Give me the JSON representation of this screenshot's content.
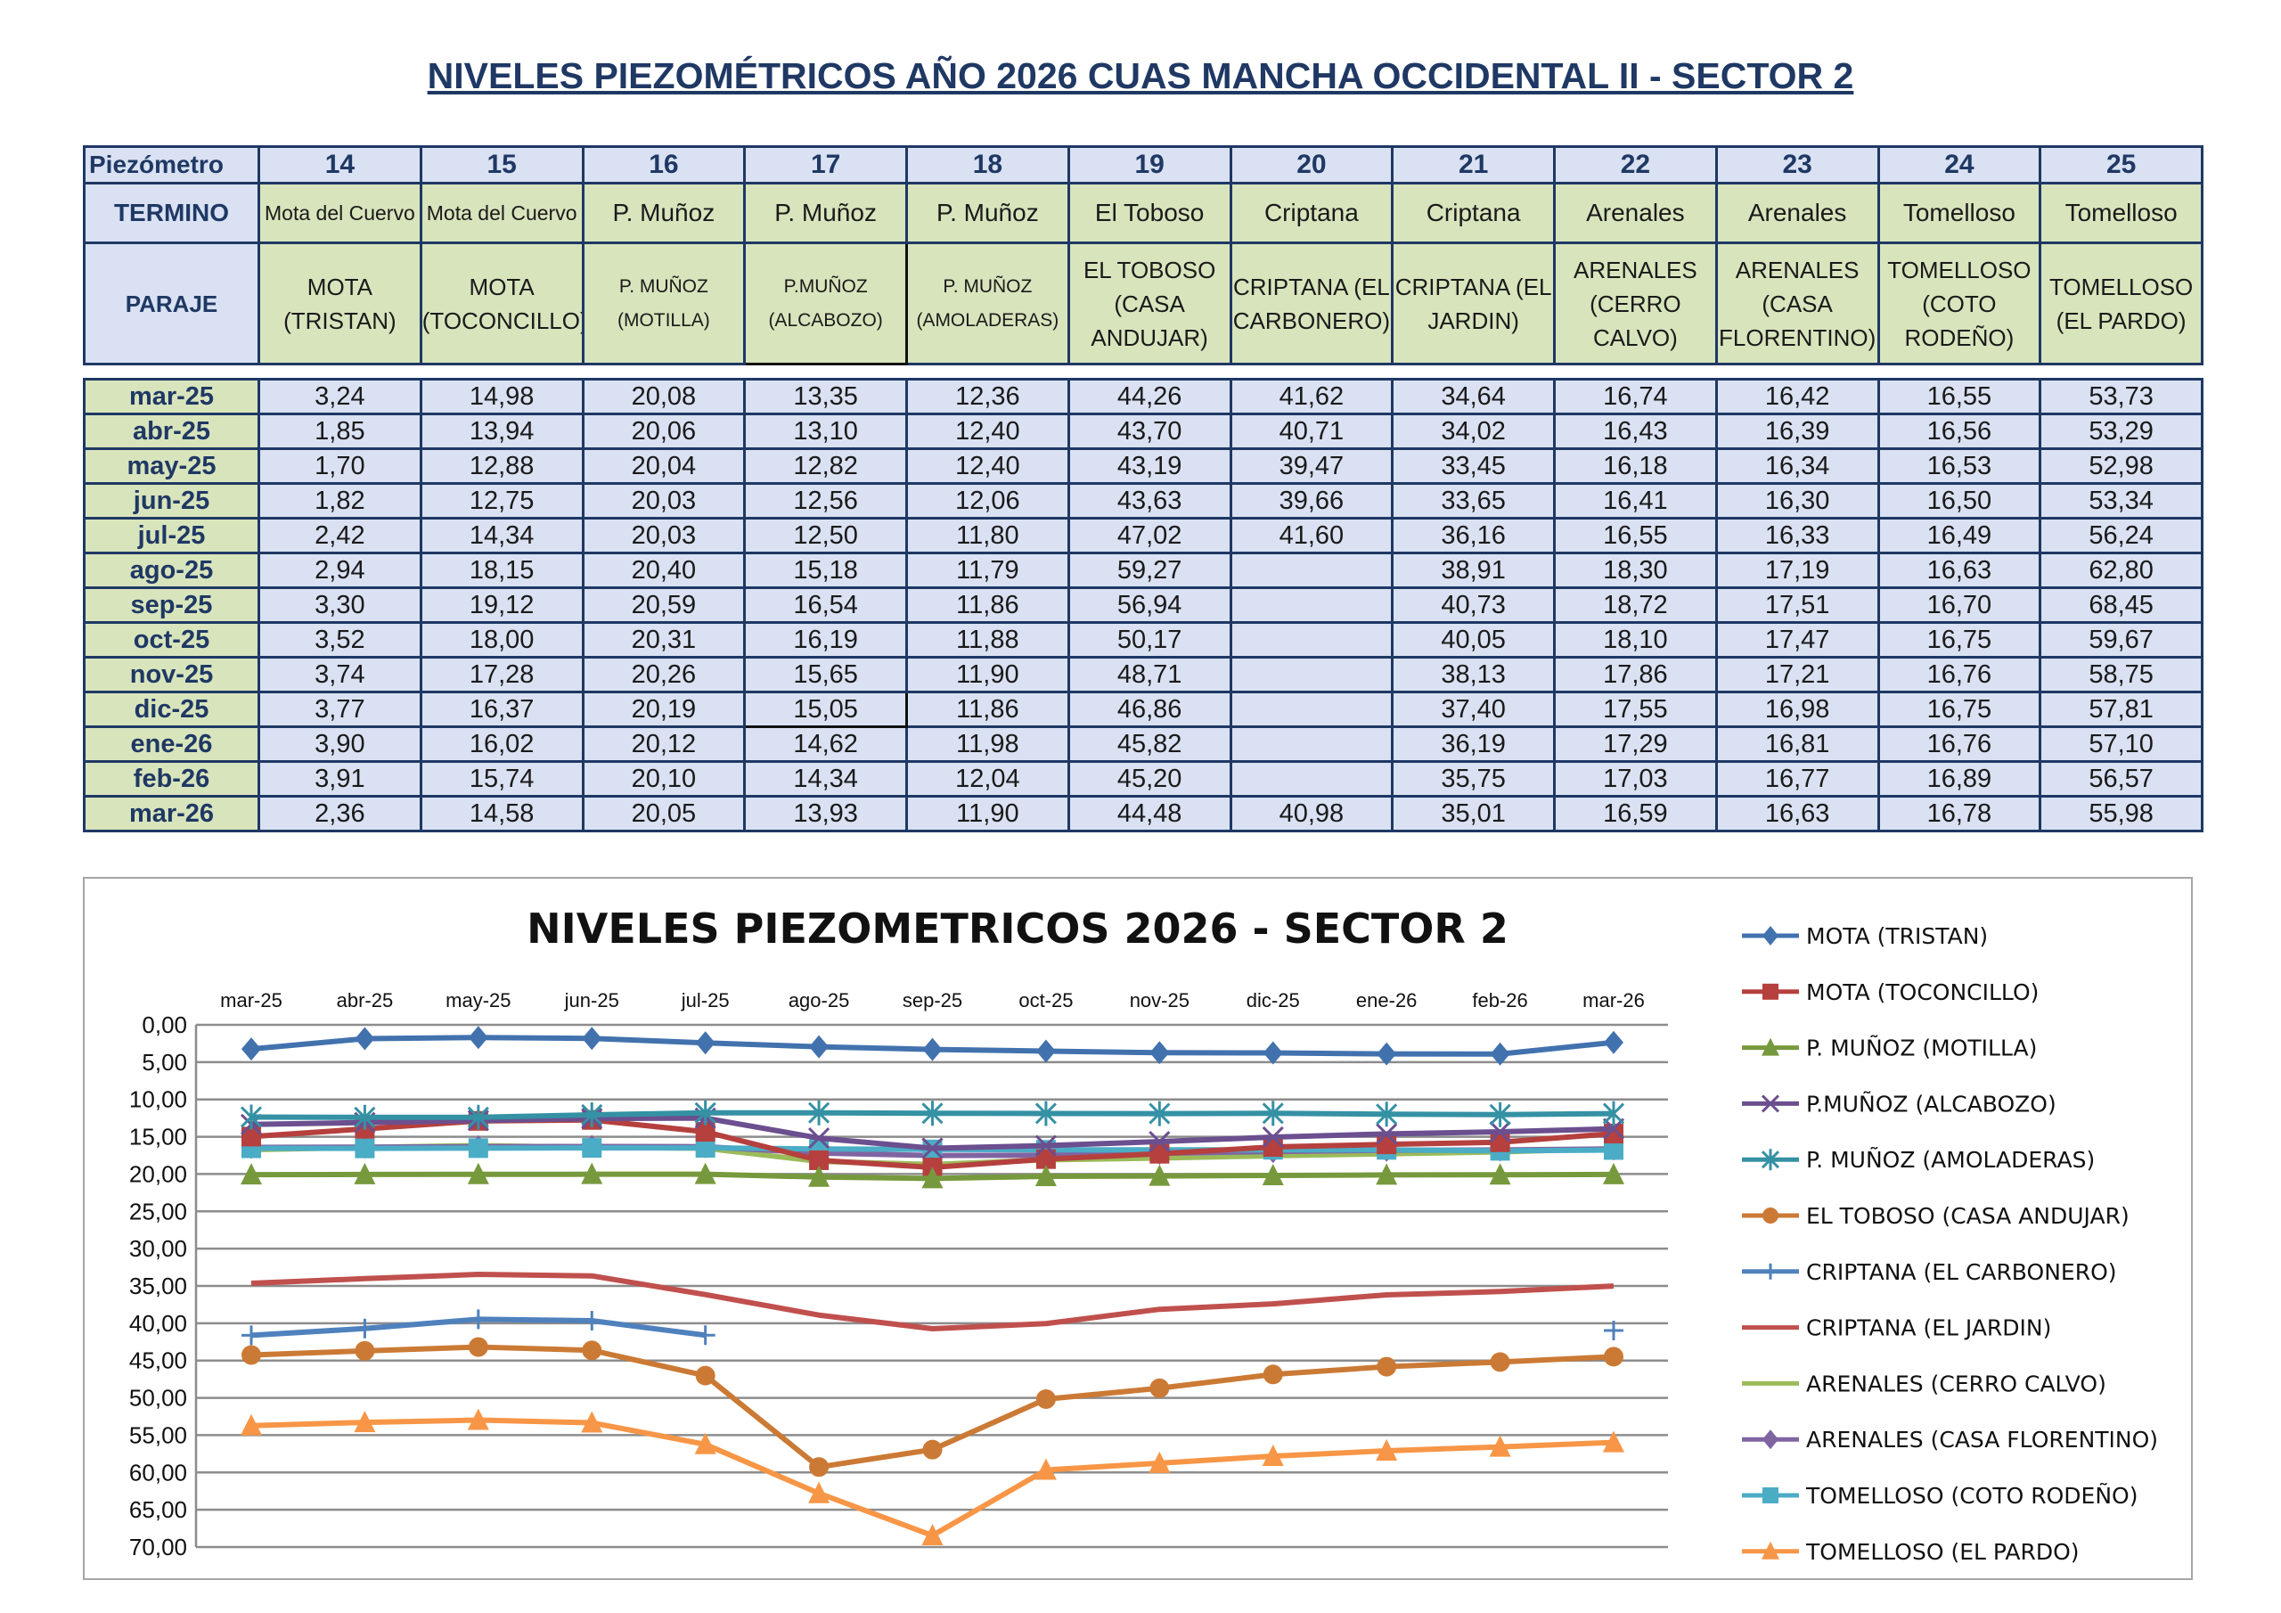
{
  "page_title": "NIVELES PIEZOMÉTRICOS AÑO 2026 CUAS MANCHA OCCIDENTAL II - SECTOR 2",
  "table": {
    "row_labels": {
      "piezometro": "Piezómetro",
      "termino": "TERMINO",
      "paraje": "PARAJE"
    },
    "columns": [
      {
        "id": "14",
        "termino": "Mota del Cuervo",
        "paraje": "MOTA (TRISTAN)"
      },
      {
        "id": "15",
        "termino": "Mota del Cuervo",
        "paraje": "MOTA (TOCONCILLO)"
      },
      {
        "id": "16",
        "termino": "P. Muñoz",
        "paraje": "P. MUÑOZ (MOTILLA)"
      },
      {
        "id": "17",
        "termino": "P. Muñoz",
        "paraje": "P.MUÑOZ (ALCABOZO)"
      },
      {
        "id": "18",
        "termino": "P. Muñoz",
        "paraje": "P. MUÑOZ (AMOLADERAS)"
      },
      {
        "id": "19",
        "termino": "El Toboso",
        "paraje": "EL TOBOSO (CASA ANDUJAR)"
      },
      {
        "id": "20",
        "termino": "Criptana",
        "paraje": "CRIPTANA (EL CARBONERO)"
      },
      {
        "id": "21",
        "termino": "Criptana",
        "paraje": "CRIPTANA (EL JARDIN)"
      },
      {
        "id": "22",
        "termino": "Arenales",
        "paraje": "ARENALES (CERRO CALVO)"
      },
      {
        "id": "23",
        "termino": "Arenales",
        "paraje": "ARENALES (CASA FLORENTINO)"
      },
      {
        "id": "24",
        "termino": "Tomelloso",
        "paraje": "TOMELLOSO (COTO RODEÑO)"
      },
      {
        "id": "25",
        "termino": "Tomelloso",
        "paraje": "TOMELLOSO (EL PARDO)"
      }
    ],
    "rows": [
      {
        "month": "mar-25",
        "values": [
          "3,24",
          "14,98",
          "20,08",
          "13,35",
          "12,36",
          "44,26",
          "41,62",
          "34,64",
          "16,74",
          "16,42",
          "16,55",
          "53,73"
        ]
      },
      {
        "month": "abr-25",
        "values": [
          "1,85",
          "13,94",
          "20,06",
          "13,10",
          "12,40",
          "43,70",
          "40,71",
          "34,02",
          "16,43",
          "16,39",
          "16,56",
          "53,29"
        ]
      },
      {
        "month": "may-25",
        "values": [
          "1,70",
          "12,88",
          "20,04",
          "12,82",
          "12,40",
          "43,19",
          "39,47",
          "33,45",
          "16,18",
          "16,34",
          "16,53",
          "52,98"
        ]
      },
      {
        "month": "jun-25",
        "values": [
          "1,82",
          "12,75",
          "20,03",
          "12,56",
          "12,06",
          "43,63",
          "39,66",
          "33,65",
          "16,41",
          "16,30",
          "16,50",
          "53,34"
        ]
      },
      {
        "month": "jul-25",
        "values": [
          "2,42",
          "14,34",
          "20,03",
          "12,50",
          "11,80",
          "47,02",
          "41,60",
          "36,16",
          "16,55",
          "16,33",
          "16,49",
          "56,24"
        ]
      },
      {
        "month": "ago-25",
        "values": [
          "2,94",
          "18,15",
          "20,40",
          "15,18",
          "11,79",
          "59,27",
          "",
          "38,91",
          "18,30",
          "17,19",
          "16,63",
          "62,80"
        ]
      },
      {
        "month": "sep-25",
        "values": [
          "3,30",
          "19,12",
          "20,59",
          "16,54",
          "11,86",
          "56,94",
          "",
          "40,73",
          "18,72",
          "17,51",
          "16,70",
          "68,45"
        ]
      },
      {
        "month": "oct-25",
        "values": [
          "3,52",
          "18,00",
          "20,31",
          "16,19",
          "11,88",
          "50,17",
          "",
          "40,05",
          "18,10",
          "17,47",
          "16,75",
          "59,67"
        ]
      },
      {
        "month": "nov-25",
        "values": [
          "3,74",
          "17,28",
          "20,26",
          "15,65",
          "11,90",
          "48,71",
          "",
          "38,13",
          "17,86",
          "17,21",
          "16,76",
          "58,75"
        ]
      },
      {
        "month": "dic-25",
        "values": [
          "3,77",
          "16,37",
          "20,19",
          "15,05",
          "11,86",
          "46,86",
          "",
          "37,40",
          "17,55",
          "16,98",
          "16,75",
          "57,81"
        ]
      },
      {
        "month": "ene-26",
        "values": [
          "3,90",
          "16,02",
          "20,12",
          "14,62",
          "11,98",
          "45,82",
          "",
          "36,19",
          "17,29",
          "16,81",
          "16,76",
          "57,10"
        ]
      },
      {
        "month": "feb-26",
        "values": [
          "3,91",
          "15,74",
          "20,10",
          "14,34",
          "12,04",
          "45,20",
          "",
          "35,75",
          "17,03",
          "16,77",
          "16,89",
          "56,57"
        ]
      },
      {
        "month": "mar-26",
        "values": [
          "2,36",
          "14,58",
          "20,05",
          "13,93",
          "11,90",
          "44,48",
          "40,98",
          "35,01",
          "16,59",
          "16,63",
          "16,78",
          "55,98"
        ]
      }
    ]
  },
  "chart_data": {
    "type": "line",
    "title": "NIVELES PIEZOMETRICOS 2026 - SECTOR 2",
    "categories": [
      "mar-25",
      "abr-25",
      "may-25",
      "jun-25",
      "jul-25",
      "ago-25",
      "sep-25",
      "oct-25",
      "nov-25",
      "dic-25",
      "ene-26",
      "feb-26",
      "mar-26"
    ],
    "y_ticks": [
      "0,00",
      "5,00",
      "10,00",
      "15,00",
      "20,00",
      "25,00",
      "30,00",
      "35,00",
      "40,00",
      "45,00",
      "50,00",
      "55,00",
      "60,00",
      "65,00",
      "70,00"
    ],
    "ylim": [
      0,
      70
    ],
    "y_reversed": true,
    "x_axis_position": "top",
    "grid": true,
    "legend_position": "right",
    "series": [
      {
        "name": "MOTA (TRISTAN)",
        "color": "#4272ae",
        "marker": "diamond",
        "values": [
          3.24,
          1.85,
          1.7,
          1.82,
          2.42,
          2.94,
          3.3,
          3.52,
          3.74,
          3.77,
          3.9,
          3.91,
          2.36
        ]
      },
      {
        "name": "MOTA (TOCONCILLO)",
        "color": "#b5403d",
        "marker": "square",
        "values": [
          14.98,
          13.94,
          12.88,
          12.75,
          14.34,
          18.15,
          19.12,
          18.0,
          17.28,
          16.37,
          16.02,
          15.74,
          14.58
        ]
      },
      {
        "name": "P. MUÑOZ (MOTILLA)",
        "color": "#77993d",
        "marker": "triangle",
        "values": [
          20.08,
          20.06,
          20.04,
          20.03,
          20.03,
          20.4,
          20.59,
          20.31,
          20.26,
          20.19,
          20.12,
          20.1,
          20.05
        ]
      },
      {
        "name": "P.MUÑOZ (ALCABOZO)",
        "color": "#6b4f8f",
        "marker": "x",
        "values": [
          13.35,
          13.1,
          12.82,
          12.56,
          12.5,
          15.18,
          16.54,
          16.19,
          15.65,
          15.05,
          14.62,
          14.34,
          13.93
        ]
      },
      {
        "name": "P. MUÑOZ (AMOLADERAS)",
        "color": "#3591a4",
        "marker": "star",
        "values": [
          12.36,
          12.4,
          12.4,
          12.06,
          11.8,
          11.79,
          11.86,
          11.88,
          11.9,
          11.86,
          11.98,
          12.04,
          11.9
        ]
      },
      {
        "name": "EL TOBOSO (CASA ANDUJAR)",
        "color": "#cb7a35",
        "marker": "circle",
        "values": [
          44.26,
          43.7,
          43.19,
          43.63,
          47.02,
          59.27,
          56.94,
          50.17,
          48.71,
          46.86,
          45.82,
          45.2,
          44.48
        ]
      },
      {
        "name": "CRIPTANA (EL CARBONERO)",
        "color": "#4f81bd",
        "marker": "plus",
        "values": [
          41.62,
          40.71,
          39.47,
          39.66,
          41.6,
          null,
          null,
          null,
          null,
          null,
          null,
          null,
          40.98
        ]
      },
      {
        "name": "CRIPTANA (EL JARDIN)",
        "color": "#c0504d",
        "marker": "none",
        "values": [
          34.64,
          34.02,
          33.45,
          33.65,
          36.16,
          38.91,
          40.73,
          40.05,
          38.13,
          37.4,
          36.19,
          35.75,
          35.01
        ]
      },
      {
        "name": "ARENALES (CERRO CALVO)",
        "color": "#9bbb59",
        "marker": "none",
        "values": [
          16.74,
          16.43,
          16.18,
          16.41,
          16.55,
          18.3,
          18.72,
          18.1,
          17.86,
          17.55,
          17.29,
          17.03,
          16.59
        ]
      },
      {
        "name": "ARENALES (CASA FLORENTINO)",
        "color": "#8064a2",
        "marker": "diamond",
        "values": [
          16.42,
          16.39,
          16.34,
          16.3,
          16.33,
          17.19,
          17.51,
          17.47,
          17.21,
          16.98,
          16.81,
          16.77,
          16.63
        ]
      },
      {
        "name": "TOMELLOSO (COTO RODEÑO)",
        "color": "#4bacc6",
        "marker": "square",
        "values": [
          16.55,
          16.56,
          16.53,
          16.5,
          16.49,
          16.63,
          16.7,
          16.75,
          16.76,
          16.75,
          16.76,
          16.89,
          16.78
        ]
      },
      {
        "name": "TOMELLOSO (EL PARDO)",
        "color": "#f79646",
        "marker": "triangle",
        "values": [
          53.73,
          53.29,
          52.98,
          53.34,
          56.24,
          62.8,
          68.45,
          59.67,
          58.75,
          57.81,
          57.1,
          56.57,
          55.98
        ]
      }
    ]
  }
}
